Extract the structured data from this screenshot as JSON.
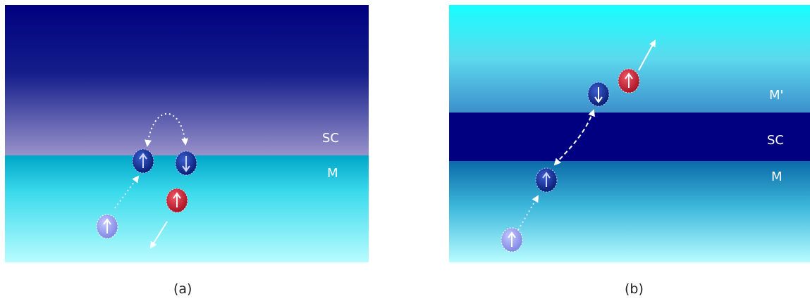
{
  "panel_a": {
    "labels": {
      "sc": "SC",
      "m": "M"
    },
    "caption": "(a)"
  },
  "panel_b": {
    "labels": {
      "m_prime": "M'",
      "sc": "SC",
      "m": "M"
    },
    "caption": "(b)"
  },
  "colors": {
    "sc_dark": "#000080",
    "cyan": "#17feff",
    "cyan_light": "#8ff2ff",
    "electron_blue": "#0a2a8c",
    "electron_red": "#d11d2c",
    "electron_faded": "#8f97e8"
  }
}
